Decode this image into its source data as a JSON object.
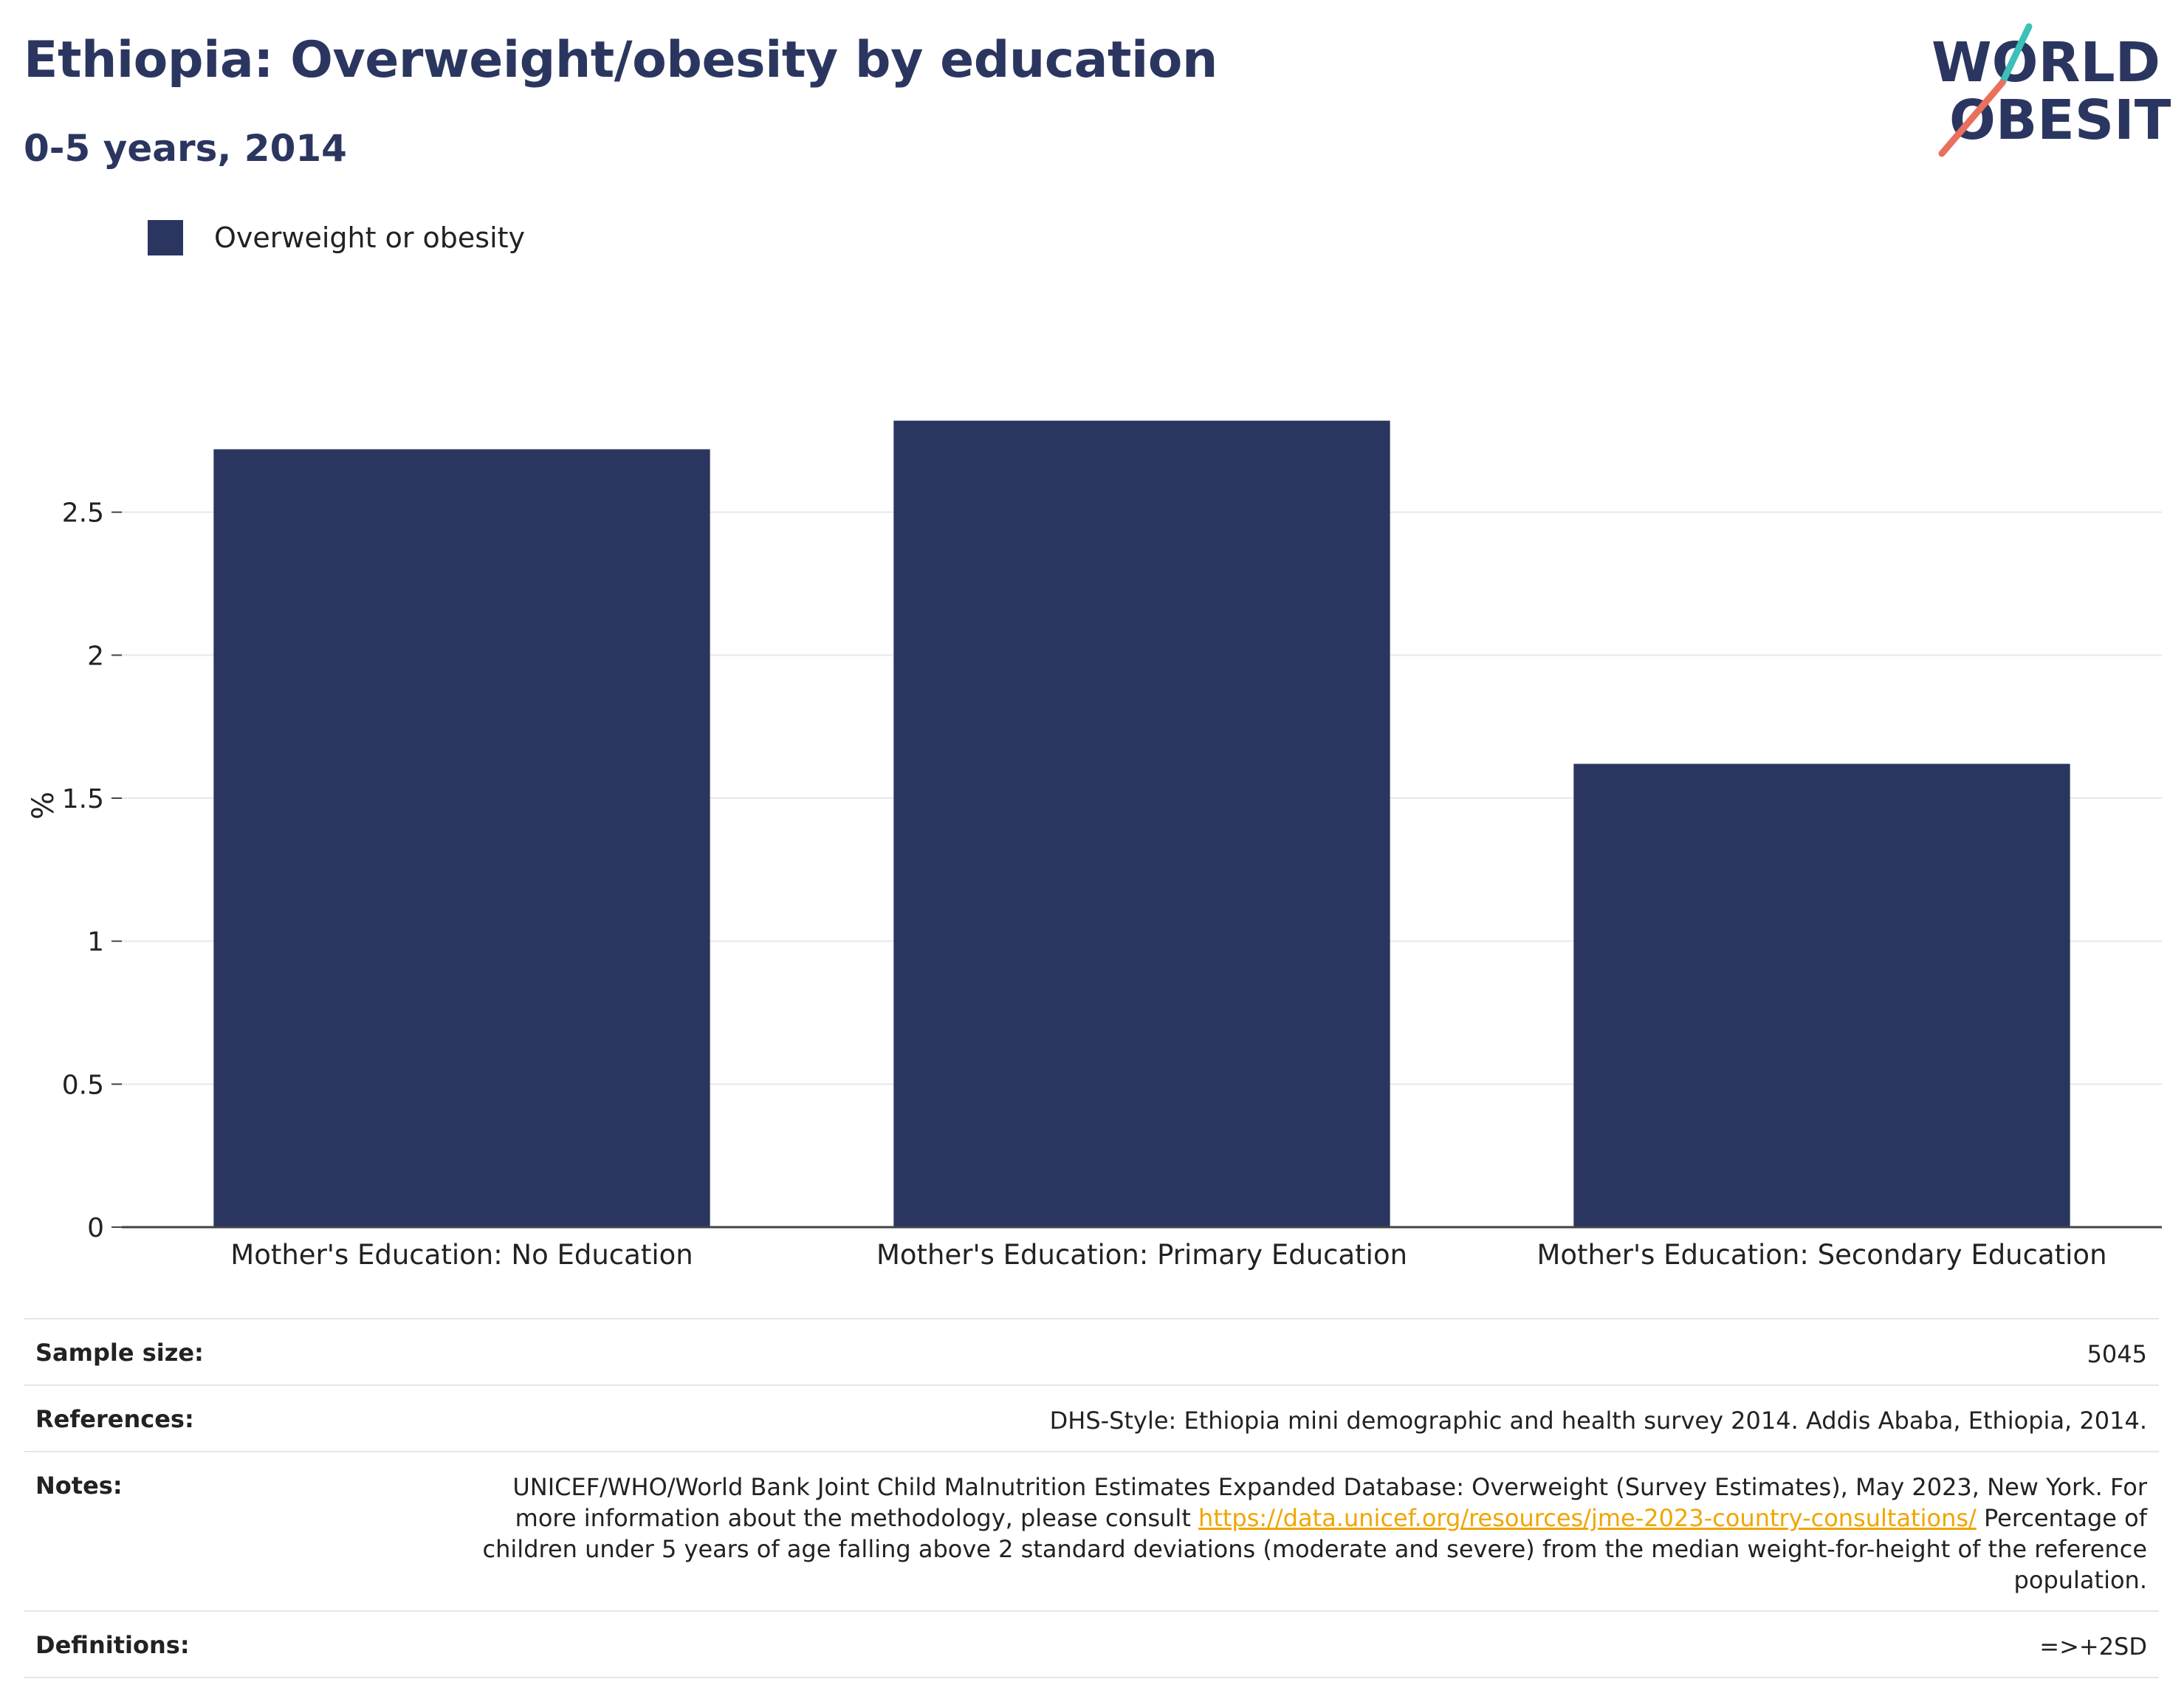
{
  "header": {
    "title": "Ethiopia: Overweight/obesity by education",
    "subtitle": "0-5 years, 2014"
  },
  "logo": {
    "line1": "WORLD",
    "line2": "OBESITY",
    "colors": {
      "navy": "#2b3660",
      "teal": "#3cc0b8",
      "coral": "#e8705c"
    }
  },
  "chart_data": {
    "type": "bar",
    "categories": [
      "Mother's Education: No Education",
      "Mother's Education: Primary Education",
      "Mother's Education: Secondary Education"
    ],
    "series": [
      {
        "name": "Overweight or obesity",
        "values": [
          2.72,
          2.82,
          1.62
        ],
        "color": "#2b3660"
      }
    ],
    "ylabel": "%",
    "ylim": [
      0,
      3.0
    ],
    "yticks": [
      0,
      0.5,
      1,
      1.5,
      2,
      2.5
    ],
    "ytick_labels": [
      "0",
      "0.5",
      "1",
      "1.5",
      "2",
      "2.5"
    ],
    "grid": true,
    "legend": "top-left"
  },
  "info": {
    "sample_size": {
      "label": "Sample size:",
      "value": "5045"
    },
    "references": {
      "label": "References:",
      "value": "DHS-Style: Ethiopia mini demographic and health survey 2014. Addis Ababa, Ethiopia, 2014."
    },
    "notes": {
      "label": "Notes:",
      "text_before_link": "UNICEF/WHO/World Bank Joint Child Malnutrition Estimates Expanded Database: Overweight (Survey Estimates), May 2023, New York. For more information about the methodology, please consult ",
      "link": "https://data.unicef.org/resources/jme-2023-country-consultations/",
      "text_after_link": " Percentage of children under 5 years of age falling above 2 standard deviations (moderate and severe) from the median weight-for-height of the reference population."
    },
    "definitions": {
      "label": "Definitions:",
      "value": "=>+2SD"
    }
  }
}
